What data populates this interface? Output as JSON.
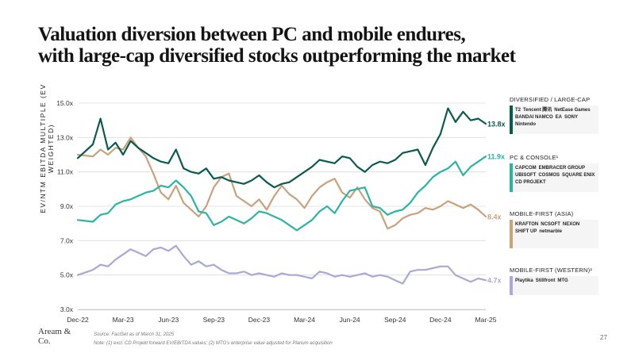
{
  "title_lines": [
    "Valuation diversion between PC and mobile endures,",
    "with large-cap diversified stocks outperforming the market"
  ],
  "legend_groups": [
    {
      "title": "DIVERSIFIED / LARGE-CAP",
      "color": "#0b5a4e",
      "logos": [
        "T2",
        "Tencent 腾讯",
        "NetEase Games",
        "BANDAI NAMCO",
        "EA",
        "SONY",
        "Nintendo"
      ]
    },
    {
      "title": "PC & CONSOLE¹",
      "color": "#2bb3a3",
      "logos": [
        "CAPCOM",
        "EMBRACER GROUP",
        "UBISOFT",
        "COSMOS",
        "SQUARE ENIX",
        "CD PROJEKT"
      ]
    },
    {
      "title": "MOBILE-FIRST (ASIA)",
      "color": "#c9a27c",
      "logos": [
        "KRAFTON",
        "NCSOFT",
        "NEXON",
        "SHIFT UP",
        "netmarble"
      ]
    },
    {
      "title": "MOBILE-FIRST (WESTERN)²",
      "color": "#a9a8d6",
      "logos": [
        "Playtika",
        "Stillfront",
        "MTG"
      ]
    }
  ],
  "footer": {
    "logo_line1": "Aream &",
    "logo_line2": "Co.",
    "source": "Source: FactSet as of March 31, 2025",
    "note": "Note: (1) excl. CD Projekt forward EV/EBITDA values; (2) MTG's enterprise value adjusted for Plarium acquisition",
    "page": "27"
  },
  "chart_data": {
    "type": "line",
    "ylabel": "EV/NTM EBITDA MULTIPLE (EV WEIGHTED)",
    "ylim": [
      3.0,
      15.0
    ],
    "yticks": [
      "3.0x",
      "5.0x",
      "7.0x",
      "9.0x",
      "11.0x",
      "13.0x",
      "15.0x"
    ],
    "ytick_values": [
      3,
      5,
      7,
      9,
      11,
      13,
      15
    ],
    "xticks": [
      "Dec-22",
      "Mar-23",
      "Jun-23",
      "Sep-23",
      "Dec-23",
      "Mar-24",
      "Jun-24",
      "Sep-24",
      "Dec-24",
      "Mar-25"
    ],
    "xlim_months": [
      0,
      27
    ],
    "grid": "horizontal",
    "series": [
      {
        "name": "DIVERSIFIED / LARGE-CAP",
        "color": "#0b5a4e",
        "end_label": "13.8x",
        "x": [
          0,
          1,
          1.5,
          2,
          2.5,
          3,
          3.5,
          4,
          4.5,
          5,
          5.5,
          6,
          6.5,
          7,
          7.5,
          8,
          8.5,
          9,
          9.5,
          10,
          10.5,
          11,
          11.5,
          12,
          12.5,
          13,
          13.5,
          14,
          14.5,
          15,
          15.5,
          16,
          16.5,
          17,
          17.5,
          18,
          18.5,
          19,
          19.5,
          20,
          20.5,
          21,
          21.5,
          22,
          22.5,
          23,
          23.5,
          24,
          24.5,
          25,
          25.5,
          26,
          26.5,
          27
        ],
        "y": [
          11.8,
          12.6,
          14.1,
          12.3,
          12.7,
          12.0,
          12.8,
          12.4,
          12.1,
          11.8,
          11.6,
          11.5,
          12.3,
          11.2,
          11.0,
          10.9,
          11.2,
          10.6,
          10.7,
          10.5,
          10.4,
          10.3,
          10.5,
          10.8,
          10.4,
          10.1,
          10.3,
          10.4,
          10.7,
          11.0,
          11.3,
          11.7,
          11.6,
          11.5,
          11.9,
          11.8,
          11.3,
          11.0,
          11.4,
          11.6,
          11.5,
          11.7,
          12.1,
          12.2,
          12.3,
          11.4,
          12.4,
          13.2,
          14.7,
          13.9,
          14.5,
          14.0,
          14.1,
          13.8
        ]
      },
      {
        "name": "PC & CONSOLE¹",
        "color": "#2bb3a3",
        "end_label": "11.9x",
        "x": [
          0,
          1,
          1.5,
          2,
          2.5,
          3,
          3.5,
          4,
          4.5,
          5,
          5.5,
          6,
          6.5,
          7,
          7.5,
          8,
          8.5,
          9,
          9.5,
          10,
          10.5,
          11,
          11.5,
          12,
          12.5,
          13,
          13.5,
          14,
          14.5,
          15,
          15.5,
          16,
          16.5,
          17,
          17.5,
          18,
          18.5,
          19,
          19.5,
          20,
          20.5,
          21,
          21.5,
          22,
          22.5,
          23,
          23.5,
          24,
          24.5,
          25,
          25.5,
          26,
          26.5,
          27
        ],
        "y": [
          8.2,
          8.1,
          8.5,
          8.6,
          9.1,
          9.3,
          9.4,
          9.6,
          9.8,
          9.9,
          10.2,
          10.1,
          10.5,
          10.1,
          9.6,
          8.7,
          8.6,
          7.9,
          8.1,
          8.4,
          8.2,
          8.0,
          8.3,
          8.7,
          8.6,
          8.4,
          8.2,
          7.9,
          7.6,
          7.9,
          8.2,
          8.7,
          9.0,
          8.6,
          9.3,
          9.9,
          10.0,
          10.1,
          9.0,
          8.9,
          8.5,
          8.7,
          8.8,
          9.2,
          9.8,
          10.2,
          10.7,
          11.0,
          11.2,
          11.6,
          10.8,
          11.3,
          11.6,
          11.9
        ]
      },
      {
        "name": "MOBILE-FIRST (ASIA)",
        "color": "#c9a27c",
        "end_label": "8.4x",
        "x": [
          0,
          1,
          1.5,
          2,
          2.5,
          3,
          3.5,
          4,
          4.5,
          5,
          5.5,
          6,
          6.5,
          7,
          7.5,
          8,
          8.5,
          9,
          9.5,
          10,
          10.5,
          11,
          11.5,
          12,
          12.5,
          13,
          13.5,
          14,
          14.5,
          15,
          15.5,
          16,
          16.5,
          17,
          17.5,
          18,
          18.5,
          19,
          19.5,
          20,
          20.5,
          21,
          21.5,
          22,
          22.5,
          23,
          23.5,
          24,
          24.5,
          25,
          25.5,
          26,
          26.5,
          27
        ],
        "y": [
          12.0,
          11.9,
          12.3,
          12.0,
          12.4,
          12.3,
          13.0,
          12.4,
          11.9,
          10.9,
          9.8,
          9.4,
          10.2,
          9.2,
          8.8,
          8.4,
          9.0,
          10.1,
          10.7,
          10.9,
          9.6,
          9.3,
          9.0,
          9.4,
          8.8,
          9.6,
          10.2,
          9.7,
          9.4,
          8.9,
          9.6,
          10.1,
          10.4,
          10.6,
          9.8,
          9.5,
          10.1,
          9.4,
          8.9,
          8.7,
          7.7,
          7.9,
          8.3,
          8.5,
          8.6,
          8.9,
          8.8,
          9.0,
          9.3,
          9.1,
          8.9,
          9.1,
          8.8,
          8.4
        ]
      },
      {
        "name": "MOBILE-FIRST (WESTERN)²",
        "color": "#a9a8d6",
        "end_label": "4.7x",
        "x": [
          0,
          1,
          1.5,
          2,
          2.5,
          3,
          3.5,
          4,
          4.5,
          5,
          5.5,
          6,
          6.5,
          7,
          7.5,
          8,
          8.5,
          9,
          9.5,
          10,
          10.5,
          11,
          11.5,
          12,
          12.5,
          13,
          13.5,
          14,
          14.5,
          15,
          15.5,
          16,
          16.5,
          17,
          17.5,
          18,
          18.5,
          19,
          19.5,
          20,
          20.5,
          21,
          21.5,
          22,
          22.5,
          23,
          23.5,
          24,
          24.5,
          25,
          25.5,
          26,
          26.5,
          27
        ],
        "y": [
          5.0,
          5.3,
          5.6,
          5.5,
          5.9,
          6.2,
          6.5,
          6.3,
          6.1,
          6.5,
          6.6,
          6.4,
          6.7,
          6.1,
          5.6,
          5.8,
          5.5,
          5.6,
          5.3,
          5.1,
          5.1,
          5.2,
          5.0,
          5.1,
          5.0,
          4.9,
          5.1,
          5.0,
          5.0,
          4.9,
          4.8,
          5.2,
          5.1,
          4.9,
          5.0,
          4.9,
          5.0,
          5.1,
          4.9,
          5.0,
          4.9,
          4.7,
          4.5,
          5.2,
          5.3,
          5.3,
          5.4,
          5.5,
          5.5,
          5.0,
          4.8,
          4.6,
          4.8,
          4.7
        ]
      }
    ]
  }
}
